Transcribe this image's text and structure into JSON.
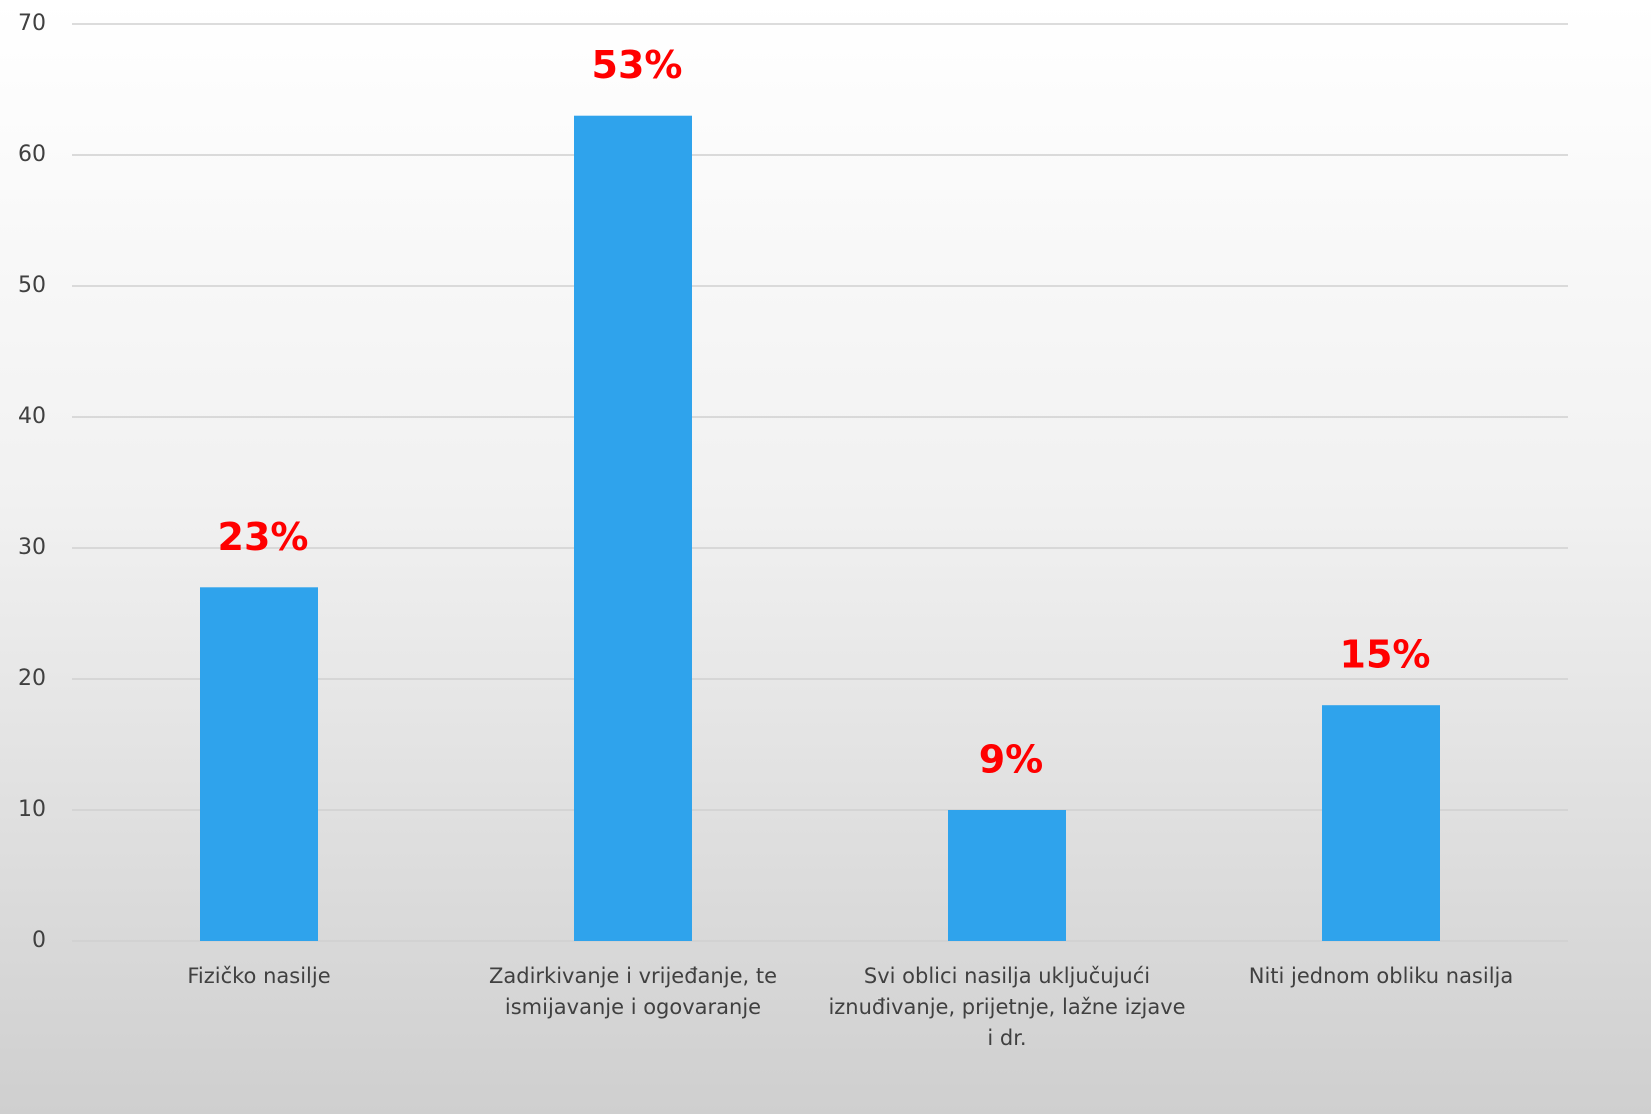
{
  "chart_data": {
    "type": "bar",
    "categories": [
      "Fizičko nasilje",
      "Zadirkivanje i vrijeđanje, te ismijavanje i ogovaranje",
      "Svi oblici nasilja uključujući iznuđivanje, prijetnje, lažne izjave i dr.",
      "Niti jednom obliku nasilja"
    ],
    "values": [
      27,
      63,
      10,
      18
    ],
    "annotations": [
      "23%",
      "53%",
      "9%",
      "15%"
    ],
    "color": "#2fa3ec",
    "annotation_color": "#ff0000",
    "ylim": [
      0,
      70
    ],
    "yticks": [
      0,
      10,
      20,
      30,
      40,
      50,
      60,
      70
    ],
    "grid": true
  }
}
